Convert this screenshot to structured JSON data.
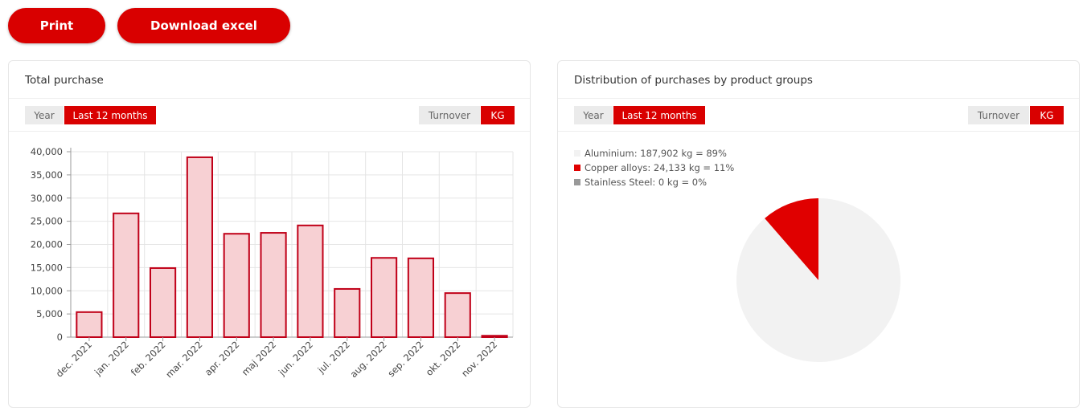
{
  "buttons": [
    "Print",
    "Download excel"
  ],
  "chart_data": [
    {
      "type": "bar",
      "title": "Total purchase",
      "period_options": [
        "Year",
        "Last 12 months"
      ],
      "unit_options": [
        "Turnover",
        "KG"
      ],
      "categories": [
        "dec. 2021",
        "jan. 2022",
        "feb. 2022",
        "mar. 2022",
        "apr. 2022",
        "maj 2022",
        "jun. 2022",
        "jul. 2022",
        "aug. 2022",
        "sep. 2022",
        "okt. 2022",
        "nov. 2022"
      ],
      "values": [
        5400,
        26700,
        14900,
        38800,
        22300,
        22500,
        24100,
        10400,
        17100,
        17000,
        9500,
        300
      ],
      "color": "#f7d0d3",
      "border_color": "#c00018",
      "ylim": [
        0,
        40000
      ],
      "yticks": [
        0,
        {
          "value": 5000,
          "label": "5,000"
        },
        {
          "value": 10000,
          "label": "10,000"
        },
        {
          "value": 15000,
          "label": "15,000"
        },
        {
          "value": 20000,
          "label": "20,000"
        },
        {
          "value": 25000,
          "label": "25,000"
        },
        {
          "value": 30000,
          "label": "30,000"
        },
        {
          "value": 35000,
          "label": "35,000"
        },
        {
          "value": 40000,
          "label": "40,000"
        }
      ],
      "grid": true
    },
    {
      "type": "pie",
      "title": "Distribution of purchases by product groups",
      "period_options": [
        "Year",
        "Last 12 months"
      ],
      "unit_options": [
        "Turnover",
        "KG"
      ],
      "values": [
        187902,
        24133,
        0
      ],
      "value_labels": [
        "Aluminium: 187,902 kg = 89%",
        "Copper alloys: 24,133 kg = 11%",
        "Stainless Steel: 0 kg = 0%"
      ],
      "colors": [
        "#f2f2f2",
        "#e00000",
        "#999999"
      ]
    }
  ]
}
